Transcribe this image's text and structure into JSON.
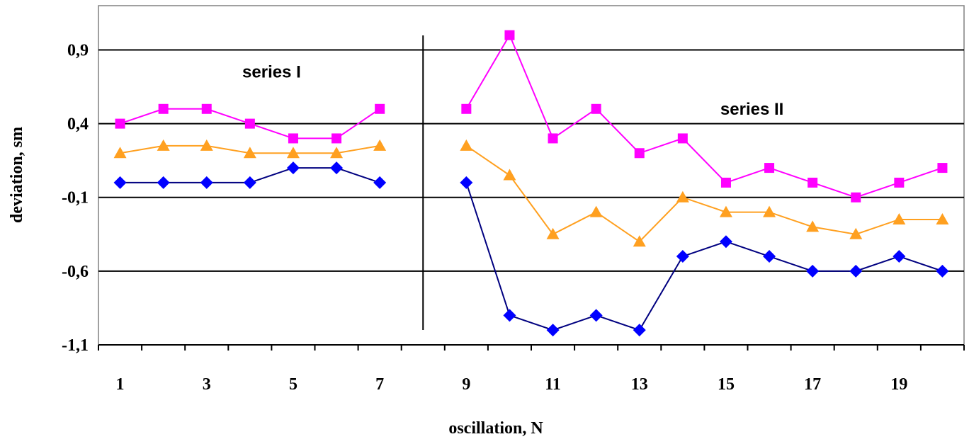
{
  "chart_data": {
    "type": "line",
    "xlabel": "oscillation, N",
    "ylabel": "deviation, sm",
    "xlim": [
      0.5,
      20.5
    ],
    "ylim": [
      -1.1,
      1.2
    ],
    "yticks": [
      0.9,
      0.4,
      -0.1,
      -0.6,
      -1.1
    ],
    "ytick_labels": [
      "0,9",
      "0,4",
      "-0,1",
      "-0,6",
      "-1,1"
    ],
    "xticks": [
      1,
      3,
      5,
      7,
      9,
      11,
      13,
      15,
      17,
      19
    ],
    "xtick_labels": [
      "1",
      "3",
      "5",
      "7",
      "9",
      "11",
      "13",
      "15",
      "17",
      "19"
    ],
    "grid": "horizontal",
    "legend": "none",
    "divider_x": 8,
    "annotations": [
      {
        "text": "series I",
        "x": 4.5,
        "y": 0.75
      },
      {
        "text": "series II",
        "x": 15.6,
        "y": 0.5
      }
    ],
    "series": [
      {
        "marker": "square",
        "color": "#ff00ff",
        "x": [
          1,
          2,
          3,
          4,
          5,
          6,
          7,
          9,
          10,
          11,
          12,
          13,
          14,
          15,
          16,
          17,
          18,
          19,
          20
        ],
        "values": [
          0.4,
          0.5,
          0.5,
          0.4,
          0.3,
          0.3,
          0.5,
          0.5,
          1.0,
          0.3,
          0.5,
          0.2,
          0.3,
          0.0,
          0.1,
          0.0,
          -0.1,
          0.0,
          0.1
        ]
      },
      {
        "marker": "triangle",
        "color": "#ffa020",
        "x": [
          1,
          2,
          3,
          4,
          5,
          6,
          7,
          9,
          10,
          11,
          12,
          13,
          14,
          15,
          16,
          17,
          18,
          19,
          20
        ],
        "values": [
          0.2,
          0.25,
          0.25,
          0.2,
          0.2,
          0.2,
          0.25,
          0.25,
          0.05,
          -0.35,
          -0.2,
          -0.4,
          -0.1,
          -0.2,
          -0.2,
          -0.3,
          -0.35,
          -0.25,
          -0.25
        ]
      },
      {
        "marker": "diamond",
        "color": "#0000ff",
        "x": [
          1,
          2,
          3,
          4,
          5,
          6,
          7,
          9,
          10,
          11,
          12,
          13,
          14,
          15,
          16,
          17,
          18,
          19,
          20
        ],
        "values": [
          0.0,
          0.0,
          0.0,
          0.0,
          0.1,
          0.1,
          0.0,
          0.0,
          -0.9,
          -1.0,
          -0.9,
          -1.0,
          -0.5,
          -0.4,
          -0.5,
          -0.6,
          -0.6,
          -0.5,
          -0.6
        ]
      }
    ]
  }
}
